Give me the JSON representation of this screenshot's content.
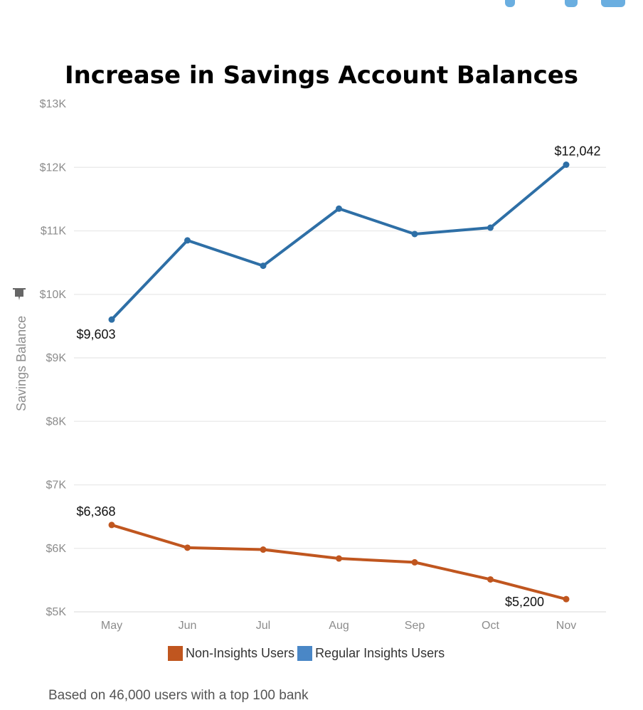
{
  "chart_data": {
    "type": "line",
    "title": "Increase in Savings Account Balances",
    "xlabel": "",
    "ylabel": "Savings Balance",
    "categories": [
      "May",
      "Jun",
      "Jul",
      "Aug",
      "Sep",
      "Oct",
      "Nov"
    ],
    "ylim": [
      5000,
      13000
    ],
    "yticks": [
      5000,
      6000,
      7000,
      8000,
      9000,
      10000,
      11000,
      12000,
      13000
    ],
    "ytick_labels": [
      "$5K",
      "$6K",
      "$7K",
      "$8K",
      "$9K",
      "$10K",
      "$11K",
      "$12K",
      "$13K"
    ],
    "grid": true,
    "legend_position": "bottom",
    "series": [
      {
        "name": "Non-Insights Users",
        "color": "#c0561f",
        "values": [
          6368,
          6010,
          5980,
          5840,
          5780,
          5510,
          5200
        ]
      },
      {
        "name": "Regular Insights Users",
        "color": "#2e6fa6",
        "legend_color": "#4a87c6",
        "values": [
          9603,
          10850,
          10450,
          11350,
          10950,
          11050,
          12042
        ]
      }
    ],
    "annotations": [
      {
        "series": 1,
        "index": 0,
        "text": "$9,603"
      },
      {
        "series": 1,
        "index": 6,
        "text": "$12,042"
      },
      {
        "series": 0,
        "index": 0,
        "text": "$6,368"
      },
      {
        "series": 0,
        "index": 6,
        "text": "$5,200"
      }
    ]
  },
  "icons": {
    "ylabel_icon": "pin-icon"
  },
  "footnote": "Based on 46,000 users with a top 100 bank"
}
